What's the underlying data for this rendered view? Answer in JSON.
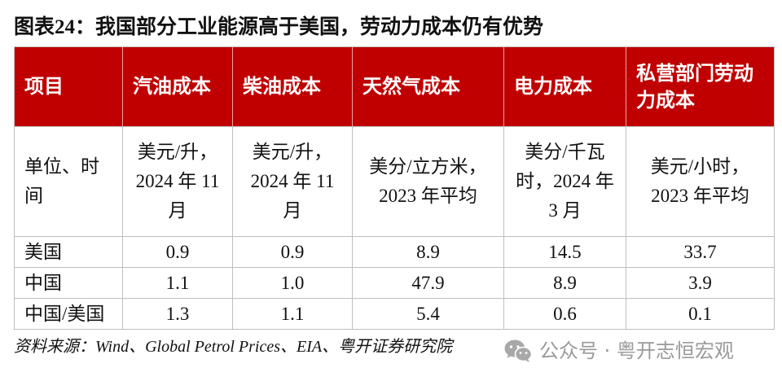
{
  "title": "图表24：我国部分工业能源高于美国，劳动力成本仍有优势",
  "table": {
    "headers": [
      "项目",
      "汽油成本",
      "柴油成本",
      "天然气成本",
      "电力成本",
      "私营部门劳动力成本"
    ],
    "units": [
      "单位、时间",
      "美元/升，2024 年 11 月",
      "美元/升，2024 年 11 月",
      "美分/立方米，2023 年平均",
      "美分/千瓦时，2024 年 3 月",
      "美元/小时，2023 年平均"
    ],
    "rows": [
      {
        "label": "美国",
        "values": [
          "0.9",
          "0.9",
          "8.9",
          "14.5",
          "33.7"
        ]
      },
      {
        "label": "中国",
        "values": [
          "1.1",
          "1.0",
          "47.9",
          "8.9",
          "3.9"
        ]
      },
      {
        "label": "中国/美国",
        "values": [
          "1.3",
          "1.1",
          "5.4",
          "0.6",
          "0.1"
        ]
      }
    ]
  },
  "source": "资料来源：Wind、Global Petrol Prices、EIA、粤开证券研究院",
  "watermark": {
    "icon": "wechat-icon",
    "text": "公众号 · 粤开志恒宏观"
  },
  "colors": {
    "header_bg": "#C00000",
    "header_text": "#FFFFFF",
    "grid": "#BFBFBF",
    "watermark": "#9A9A9A"
  }
}
